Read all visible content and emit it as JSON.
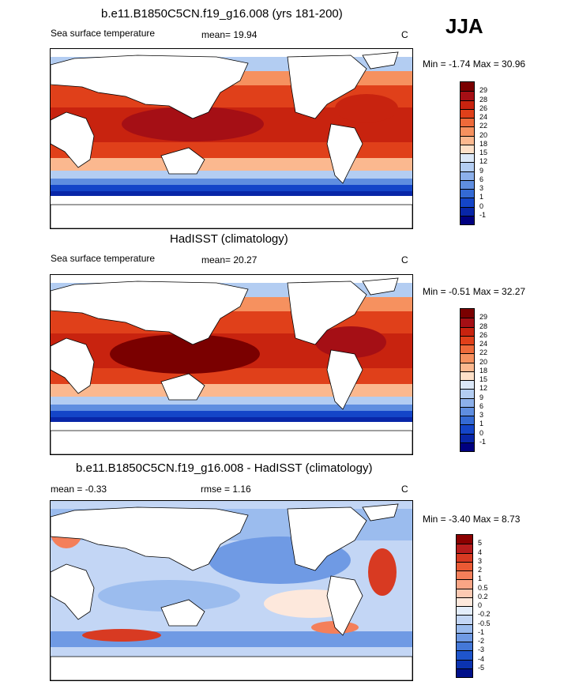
{
  "season": "JJA",
  "panels": [
    {
      "title": "b.e11.B1850C5CN.f19_g16.008 (yrs 181-200)",
      "left_label": "Sea surface temperature",
      "center_label": "mean=  19.94",
      "unit": "C",
      "minmax": "Min = -1.74 Max = 30.96",
      "colorbar_labels": [
        "29",
        "28",
        "26",
        "24",
        "22",
        "20",
        "18",
        "15",
        "12",
        "9",
        "6",
        "3",
        "1",
        "0",
        "-1"
      ],
      "colors": [
        "#7a0000",
        "#a50f15",
        "#c8230f",
        "#e0401a",
        "#ee6a3a",
        "#f6915f",
        "#fbb88f",
        "#fde0c8",
        "#dbe8f8",
        "#b3cdf2",
        "#8cb0ea",
        "#5f8ee0",
        "#346ad4",
        "#1445c8",
        "#0826a8",
        "#000080"
      ]
    },
    {
      "title": "HadISST (climatology)",
      "left_label": "Sea surface temperature",
      "center_label": "mean=  20.27",
      "unit": "C",
      "minmax": "Min = -0.51 Max = 32.27",
      "colorbar_labels": [
        "29",
        "28",
        "26",
        "24",
        "22",
        "20",
        "18",
        "15",
        "12",
        "9",
        "6",
        "3",
        "1",
        "0",
        "-1"
      ],
      "colors": [
        "#7a0000",
        "#a50f15",
        "#c8230f",
        "#e0401a",
        "#ee6a3a",
        "#f6915f",
        "#fbb88f",
        "#fde0c8",
        "#dbe8f8",
        "#b3cdf2",
        "#8cb0ea",
        "#5f8ee0",
        "#346ad4",
        "#1445c8",
        "#0826a8",
        "#000080"
      ]
    },
    {
      "title": "b.e11.B1850C5CN.f19_g16.008 - HadISST (climatology)",
      "left_label": "mean = -0.33",
      "center_label": "rmse =  1.16",
      "unit": "C",
      "minmax": "Min = -3.40 Max =  8.73",
      "colorbar_labels": [
        "5",
        "4",
        "3",
        "2",
        "1",
        "0.5",
        "0.2",
        "0",
        "-0.2",
        "-0.5",
        "-1",
        "-2",
        "-3",
        "-4",
        "-5"
      ],
      "colors": [
        "#8b0000",
        "#b71c1c",
        "#d83a22",
        "#ea5a34",
        "#f47f5a",
        "#f9a585",
        "#fcc9b2",
        "#fde8dc",
        "#e3edfb",
        "#c3d6f5",
        "#9bbcee",
        "#6f9ae4",
        "#4478d8",
        "#1f55cc",
        "#0b33b0",
        "#00108a"
      ]
    }
  ]
}
